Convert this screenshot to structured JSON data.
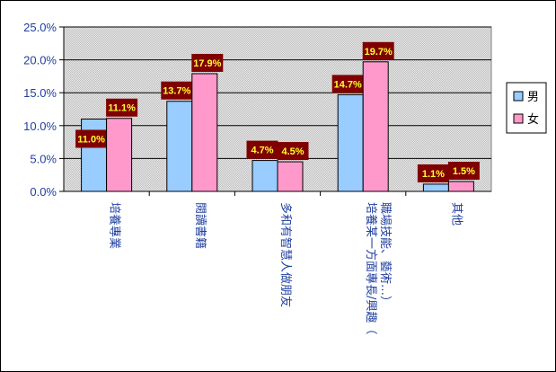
{
  "chart_data": {
    "type": "bar",
    "categories": [
      [
        "培養專業"
      ],
      [
        "閱讀書籍"
      ],
      [
        "多和有智慧人做朋友"
      ],
      [
        "培養某一方面專長/興趣（",
        "職場技能、藝術…）"
      ],
      [
        "其他"
      ]
    ],
    "series": [
      {
        "name": "男",
        "values": [
          11.0,
          13.7,
          4.7,
          14.7,
          1.1
        ],
        "labels": [
          "11.0%",
          "13.7%",
          "4.7%",
          "14.7%",
          "1.1%"
        ],
        "color": "#99ccff"
      },
      {
        "name": "女",
        "values": [
          11.1,
          17.9,
          4.5,
          19.7,
          1.5
        ],
        "labels": [
          "11.1%",
          "17.9%",
          "4.5%",
          "19.7%",
          "1.5%"
        ],
        "color": "#ff99cc"
      }
    ],
    "yticks": [
      "0.0%",
      "5.0%",
      "10.0%",
      "15.0%",
      "20.0%",
      "25.0%"
    ],
    "ylim": [
      0,
      25
    ],
    "grid": true,
    "legend": "right",
    "label_bg": "#800000",
    "label_color": "#ffff33",
    "plot_bg": "#c0c0c0"
  }
}
